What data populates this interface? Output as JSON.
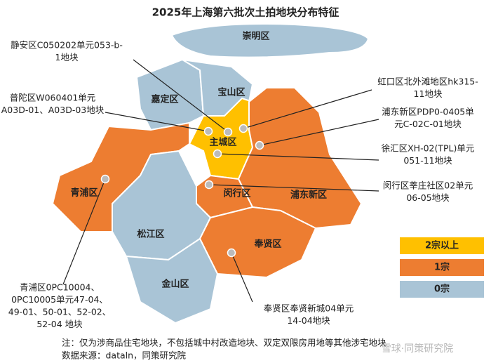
{
  "title": "2025年上海第六批次土拍地块分布特征",
  "districts": [
    {
      "name": "崇明区",
      "color": "#a9c4d6"
    },
    {
      "name": "嘉定区",
      "color": "#a9c4d6"
    },
    {
      "name": "宝山区",
      "color": "#a9c4d6"
    },
    {
      "name": "主城区",
      "color": "#ffc000"
    },
    {
      "name": "浦东新区",
      "color": "#ed7d31"
    },
    {
      "name": "闵行区",
      "color": "#ed7d31"
    },
    {
      "name": "青浦区",
      "color": "#ed7d31"
    },
    {
      "name": "松江区",
      "color": "#a9c4d6"
    },
    {
      "name": "奉贤区",
      "color": "#ed7d31"
    },
    {
      "name": "金山区",
      "color": "#a9c4d6"
    }
  ],
  "plots": [
    {
      "lines": [
        "静安区C050202单元053-b-",
        "1地块"
      ]
    },
    {
      "lines": [
        "普陀区W060401单元",
        "A03D-01、A03D-03地块"
      ]
    },
    {
      "lines": [
        "虹口区北外滩地区hk315-",
        "11地块"
      ]
    },
    {
      "lines": [
        "浦东新区PDP0-0405单",
        "元C-02C-01地块"
      ]
    },
    {
      "lines": [
        "徐汇区XH-02(TPL)单元",
        "051-11地块"
      ]
    },
    {
      "lines": [
        "闵行区莘庄社区02单元",
        "06-05地块"
      ]
    },
    {
      "lines": [
        "青浦区0PC10004、",
        "0PC10005单元47-04、",
        "49-01、50-01、52-02、",
        "52-04 地块"
      ]
    },
    {
      "lines": [
        "奉贤区奉贤新城04单元",
        "14-04地块"
      ]
    }
  ],
  "legend": [
    {
      "label": "2宗以上",
      "color": "#ffc000"
    },
    {
      "label": "1宗",
      "color": "#ed7d31"
    },
    {
      "label": "0宗",
      "color": "#a9c4d6"
    }
  ],
  "notes": [
    "注：仅为涉商品住宅地块，不包括城中村改造地块、双定双限房用地等其他涉宅地块",
    "数据来源：dataln，同策研究院"
  ],
  "watermark": "雪球·同策研究院"
}
